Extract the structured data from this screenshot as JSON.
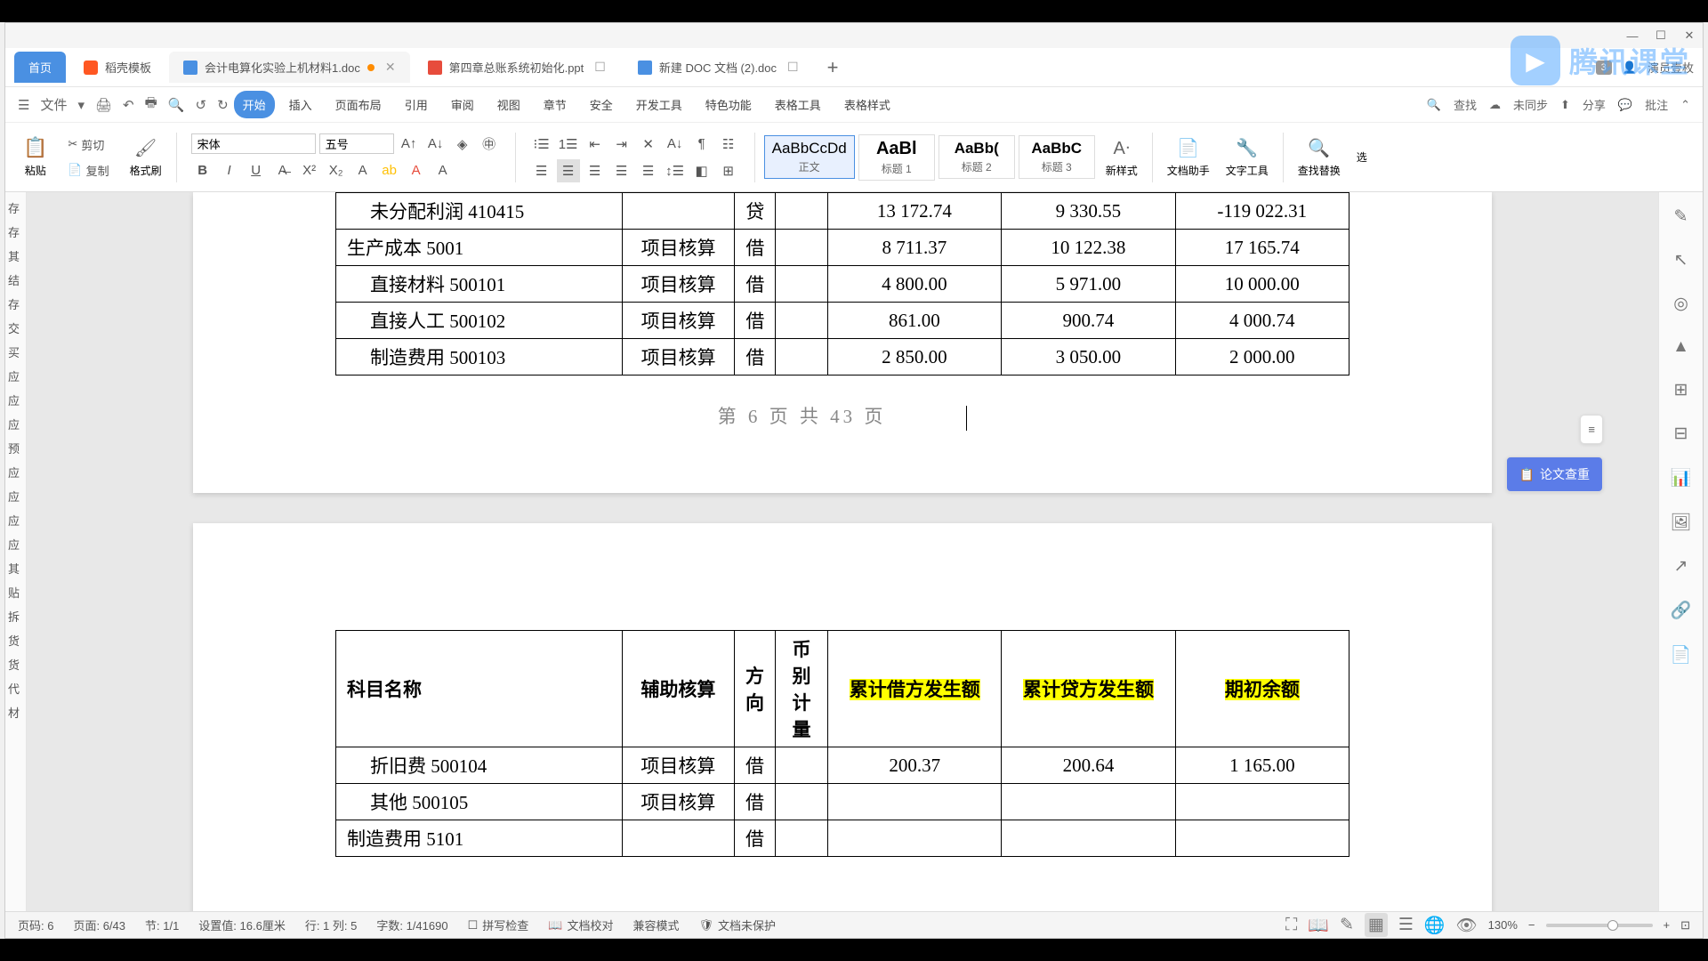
{
  "window": {
    "user": "演员壹枚"
  },
  "tabs": {
    "home": "首页",
    "template": "稻壳模板",
    "doc1": "会计电算化实验上机材料1.doc",
    "doc2": "第四章总账系统初始化.ppt",
    "doc3": "新建 DOC 文档 (2).doc",
    "badge": "3"
  },
  "menu": {
    "file": "文件",
    "items": [
      "开始",
      "插入",
      "页面布局",
      "引用",
      "审阅",
      "视图",
      "章节",
      "安全",
      "开发工具",
      "特色功能",
      "表格工具",
      "表格样式"
    ],
    "search": "查找",
    "unsync": "未同步",
    "share": "分享",
    "batch": "批注"
  },
  "ribbon": {
    "paste": "粘贴",
    "cut": "剪切",
    "copy": "复制",
    "fmtpaint": "格式刷",
    "font": "宋体",
    "size": "五号",
    "styles": [
      {
        "preview": "AaBbCcDd",
        "name": "正文"
      },
      {
        "preview": "AaBl",
        "name": "标题 1"
      },
      {
        "preview": "AaBb(",
        "name": "标题 2"
      },
      {
        "preview": "AaBbC",
        "name": "标题 3"
      }
    ],
    "newstyle": "新样式",
    "dochelper": "文档助手",
    "texttool": "文字工具",
    "findrep": "查找替换",
    "select": "选"
  },
  "nav_items": [
    "存",
    "存",
    "其",
    "结",
    "存",
    "交",
    "买",
    "应",
    "应",
    "应",
    "预",
    "应",
    "应",
    "应",
    "应",
    "其",
    "贴",
    "拆",
    "货",
    "货",
    "代",
    "材"
  ],
  "table1_rows": [
    {
      "name": "未分配利润 410415",
      "indent": true,
      "aux": "",
      "dir": "贷",
      "c1": "13 172.74",
      "c2": "9 330.55",
      "c3": "-119 022.31"
    },
    {
      "name": "生产成本 5001",
      "indent": false,
      "aux": "项目核算",
      "dir": "借",
      "c1": "8 711.37",
      "c2": "10 122.38",
      "c3": "17 165.74"
    },
    {
      "name": "直接材料 500101",
      "indent": true,
      "aux": "项目核算",
      "dir": "借",
      "c1": "4 800.00",
      "c2": "5 971.00",
      "c3": "10 000.00"
    },
    {
      "name": "直接人工 500102",
      "indent": true,
      "aux": "项目核算",
      "dir": "借",
      "c1": "861.00",
      "c2": "900.74",
      "c3": "4 000.74"
    },
    {
      "name": "制造费用 500103",
      "indent": true,
      "aux": "项目核算",
      "dir": "借",
      "c1": "2 850.00",
      "c2": "3 050.00",
      "c3": "2 000.00"
    }
  ],
  "page_num": "第 6 页 共 43 页",
  "table2_headers": {
    "name": "科目名称",
    "aux": "辅助核算",
    "dir": "方向",
    "cur": "币别计量",
    "c1": "累计借方发生额",
    "c2": "累计贷方发生额",
    "c3": "期初余额"
  },
  "table2_rows": [
    {
      "name": "折旧费 500104",
      "indent": true,
      "aux": "项目核算",
      "dir": "借",
      "c1": "200.37",
      "c2": "200.64",
      "c3": "1 165.00"
    },
    {
      "name": "其他 500105",
      "indent": true,
      "aux": "项目核算",
      "dir": "借",
      "c1": "",
      "c2": "",
      "c3": ""
    },
    {
      "name": "制造费用 5101",
      "indent": false,
      "aux": "",
      "dir": "借",
      "c1": "",
      "c2": "",
      "c3": ""
    }
  ],
  "sidebar": {
    "paper_check": "论文查重"
  },
  "status": {
    "page": "页码: 6",
    "pages": "页面: 6/43",
    "section": "节: 1/1",
    "setvalue": "设置值: 16.6厘米",
    "line": "行: 1  列: 5",
    "words": "字数: 1/41690",
    "spell": "拼写检查",
    "proof": "文档校对",
    "compat": "兼容模式",
    "protect": "文档未保护",
    "zoom": "130%"
  },
  "watermark": "腾讯课堂"
}
